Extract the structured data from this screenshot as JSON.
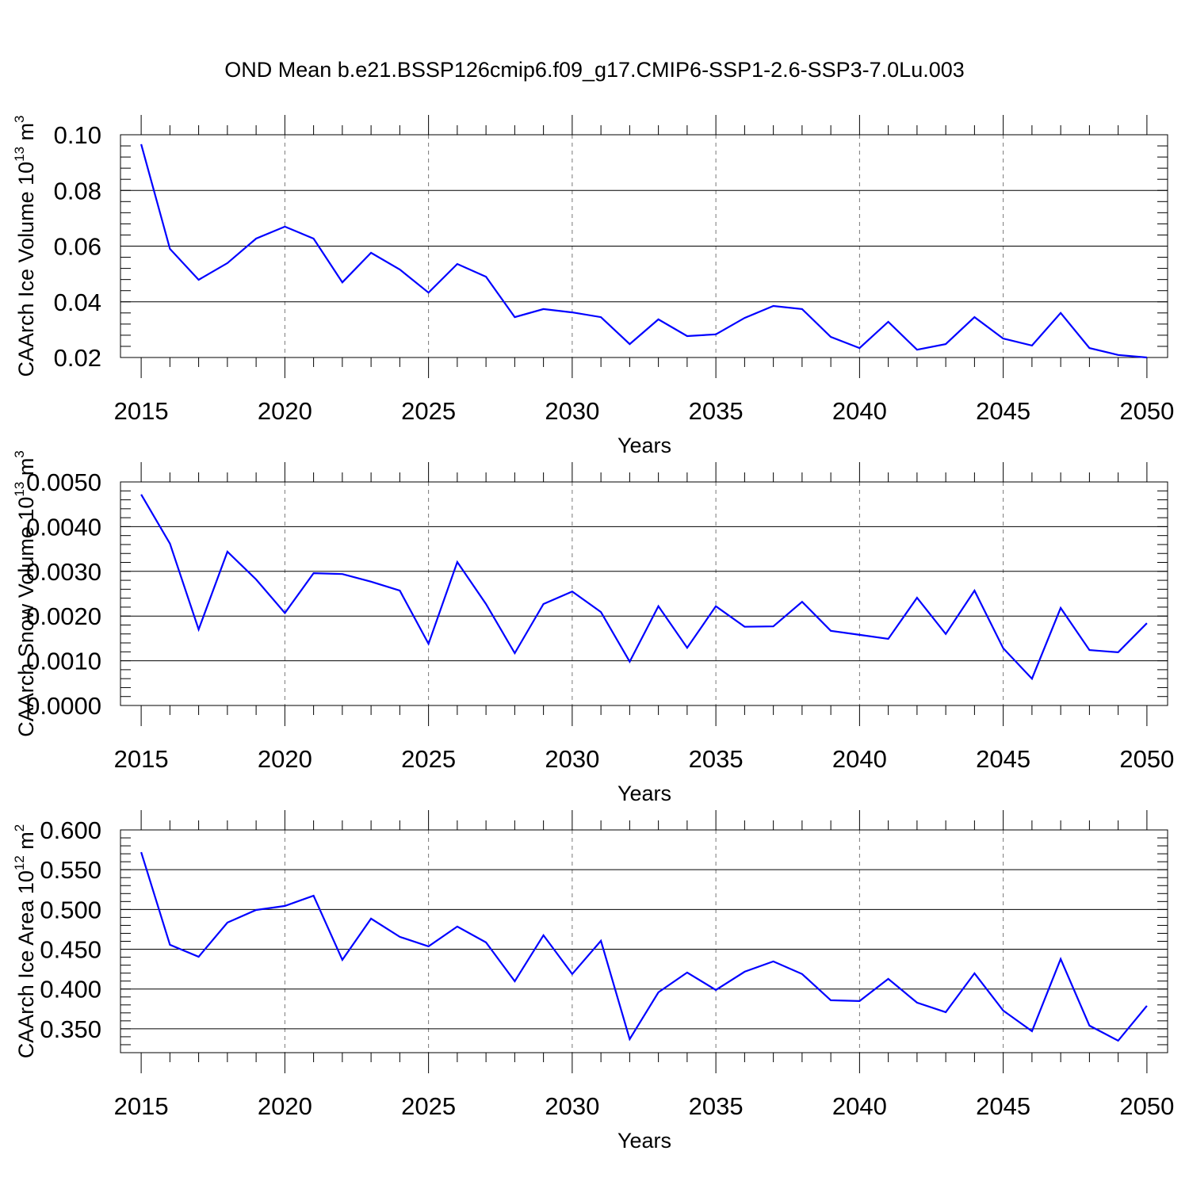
{
  "title": "OND Mean b.e21.BSSP126cmip6.f09_g17.CMIP6-SSP1-2.6-SSP3-7.0Lu.003",
  "line_color": "#0000ff",
  "chart_data": [
    {
      "type": "line",
      "ylabel": "CAArch Ice Volume 10",
      "ylabel_exp": "13",
      "ylabel_unit": " m",
      "ylabel_unit_exp": "3",
      "xlabel": "Years",
      "xlim": [
        2014.28,
        2050.72
      ],
      "ylim": [
        0.02,
        0.1
      ],
      "yticks": [
        "0.02",
        "0.04",
        "0.06",
        "0.08",
        "0.10"
      ],
      "xticks": [
        "2015",
        "2020",
        "2025",
        "2030",
        "2035",
        "2040",
        "2045",
        "2050"
      ],
      "grid": "vertical dashed at major x ticks",
      "x": [
        2015,
        2016,
        2017,
        2018,
        2019,
        2020,
        2021,
        2022,
        2023,
        2024,
        2025,
        2026,
        2027,
        2028,
        2029,
        2030,
        2031,
        2032,
        2033,
        2034,
        2035,
        2036,
        2037,
        2038,
        2039,
        2040,
        2041,
        2042,
        2043,
        2044,
        2045,
        2046,
        2047,
        2048,
        2049,
        2050
      ],
      "values": [
        0.0966,
        0.059,
        0.0479,
        0.0539,
        0.0627,
        0.067,
        0.0627,
        0.047,
        0.0576,
        0.0516,
        0.0433,
        0.0536,
        0.049,
        0.0345,
        0.0374,
        0.0362,
        0.0345,
        0.0248,
        0.0337,
        0.0277,
        0.0283,
        0.0342,
        0.0385,
        0.0374,
        0.0274,
        0.0234,
        0.0328,
        0.0228,
        0.0248,
        0.0345,
        0.0268,
        0.0243,
        0.036,
        0.0234,
        0.0209,
        0.02
      ]
    },
    {
      "type": "line",
      "ylabel": "CAArch Snow Volume 10",
      "ylabel_exp": "13",
      "ylabel_unit": " m",
      "ylabel_unit_exp": "3",
      "xlabel": "Years",
      "xlim": [
        2014.28,
        2050.72
      ],
      "ylim": [
        0.0,
        0.005
      ],
      "yticks": [
        "0.0000",
        "0.0010",
        "0.0020",
        "0.0030",
        "0.0040",
        "0.0050"
      ],
      "xticks": [
        "2015",
        "2020",
        "2025",
        "2030",
        "2035",
        "2040",
        "2045",
        "2050"
      ],
      "grid": "vertical dashed at major x ticks",
      "x": [
        2015,
        2016,
        2017,
        2018,
        2019,
        2020,
        2021,
        2022,
        2023,
        2024,
        2025,
        2026,
        2027,
        2028,
        2029,
        2030,
        2031,
        2032,
        2033,
        2034,
        2035,
        2036,
        2037,
        2038,
        2039,
        2040,
        2041,
        2042,
        2043,
        2044,
        2045,
        2046,
        2047,
        2048,
        2049,
        2050
      ],
      "values": [
        0.00472,
        0.00362,
        0.0017,
        0.00344,
        0.00282,
        0.00207,
        0.00296,
        0.00294,
        0.00277,
        0.00257,
        0.00138,
        0.00321,
        0.00227,
        0.00117,
        0.00227,
        0.00255,
        0.00209,
        0.00098,
        0.00222,
        0.00129,
        0.00222,
        0.00176,
        0.00177,
        0.00232,
        0.00167,
        0.00158,
        0.00149,
        0.00241,
        0.0016,
        0.00257,
        0.00128,
        0.0006,
        0.00218,
        0.00124,
        0.00119,
        0.00184
      ]
    },
    {
      "type": "line",
      "ylabel": "CAArch Ice Area 10",
      "ylabel_exp": "12",
      "ylabel_unit": " m",
      "ylabel_unit_exp": "2",
      "xlabel": "Years",
      "xlim": [
        2014.28,
        2050.72
      ],
      "ylim": [
        0.32,
        0.6
      ],
      "yticks": [
        "0.350",
        "0.400",
        "0.450",
        "0.500",
        "0.550",
        "0.600"
      ],
      "xticks": [
        "2015",
        "2020",
        "2025",
        "2030",
        "2035",
        "2040",
        "2045",
        "2050"
      ],
      "grid": "vertical dashed at major x ticks",
      "x": [
        2015,
        2016,
        2017,
        2018,
        2019,
        2020,
        2021,
        2022,
        2023,
        2024,
        2025,
        2026,
        2027,
        2028,
        2029,
        2030,
        2031,
        2032,
        2033,
        2034,
        2035,
        2036,
        2037,
        2038,
        2039,
        2040,
        2041,
        2042,
        2043,
        2044,
        2045,
        2046,
        2047,
        2048,
        2049,
        2050
      ],
      "values": [
        0.572,
        0.4556,
        0.4406,
        0.4835,
        0.4994,
        0.5044,
        0.5173,
        0.4367,
        0.4885,
        0.4656,
        0.4536,
        0.4785,
        0.4586,
        0.4098,
        0.4676,
        0.4188,
        0.4606,
        0.337,
        0.3958,
        0.4207,
        0.3988,
        0.4217,
        0.4347,
        0.4188,
        0.3859,
        0.3849,
        0.4128,
        0.3829,
        0.3709,
        0.4197,
        0.3729,
        0.347,
        0.4377,
        0.354,
        0.335,
        0.3789
      ]
    }
  ]
}
